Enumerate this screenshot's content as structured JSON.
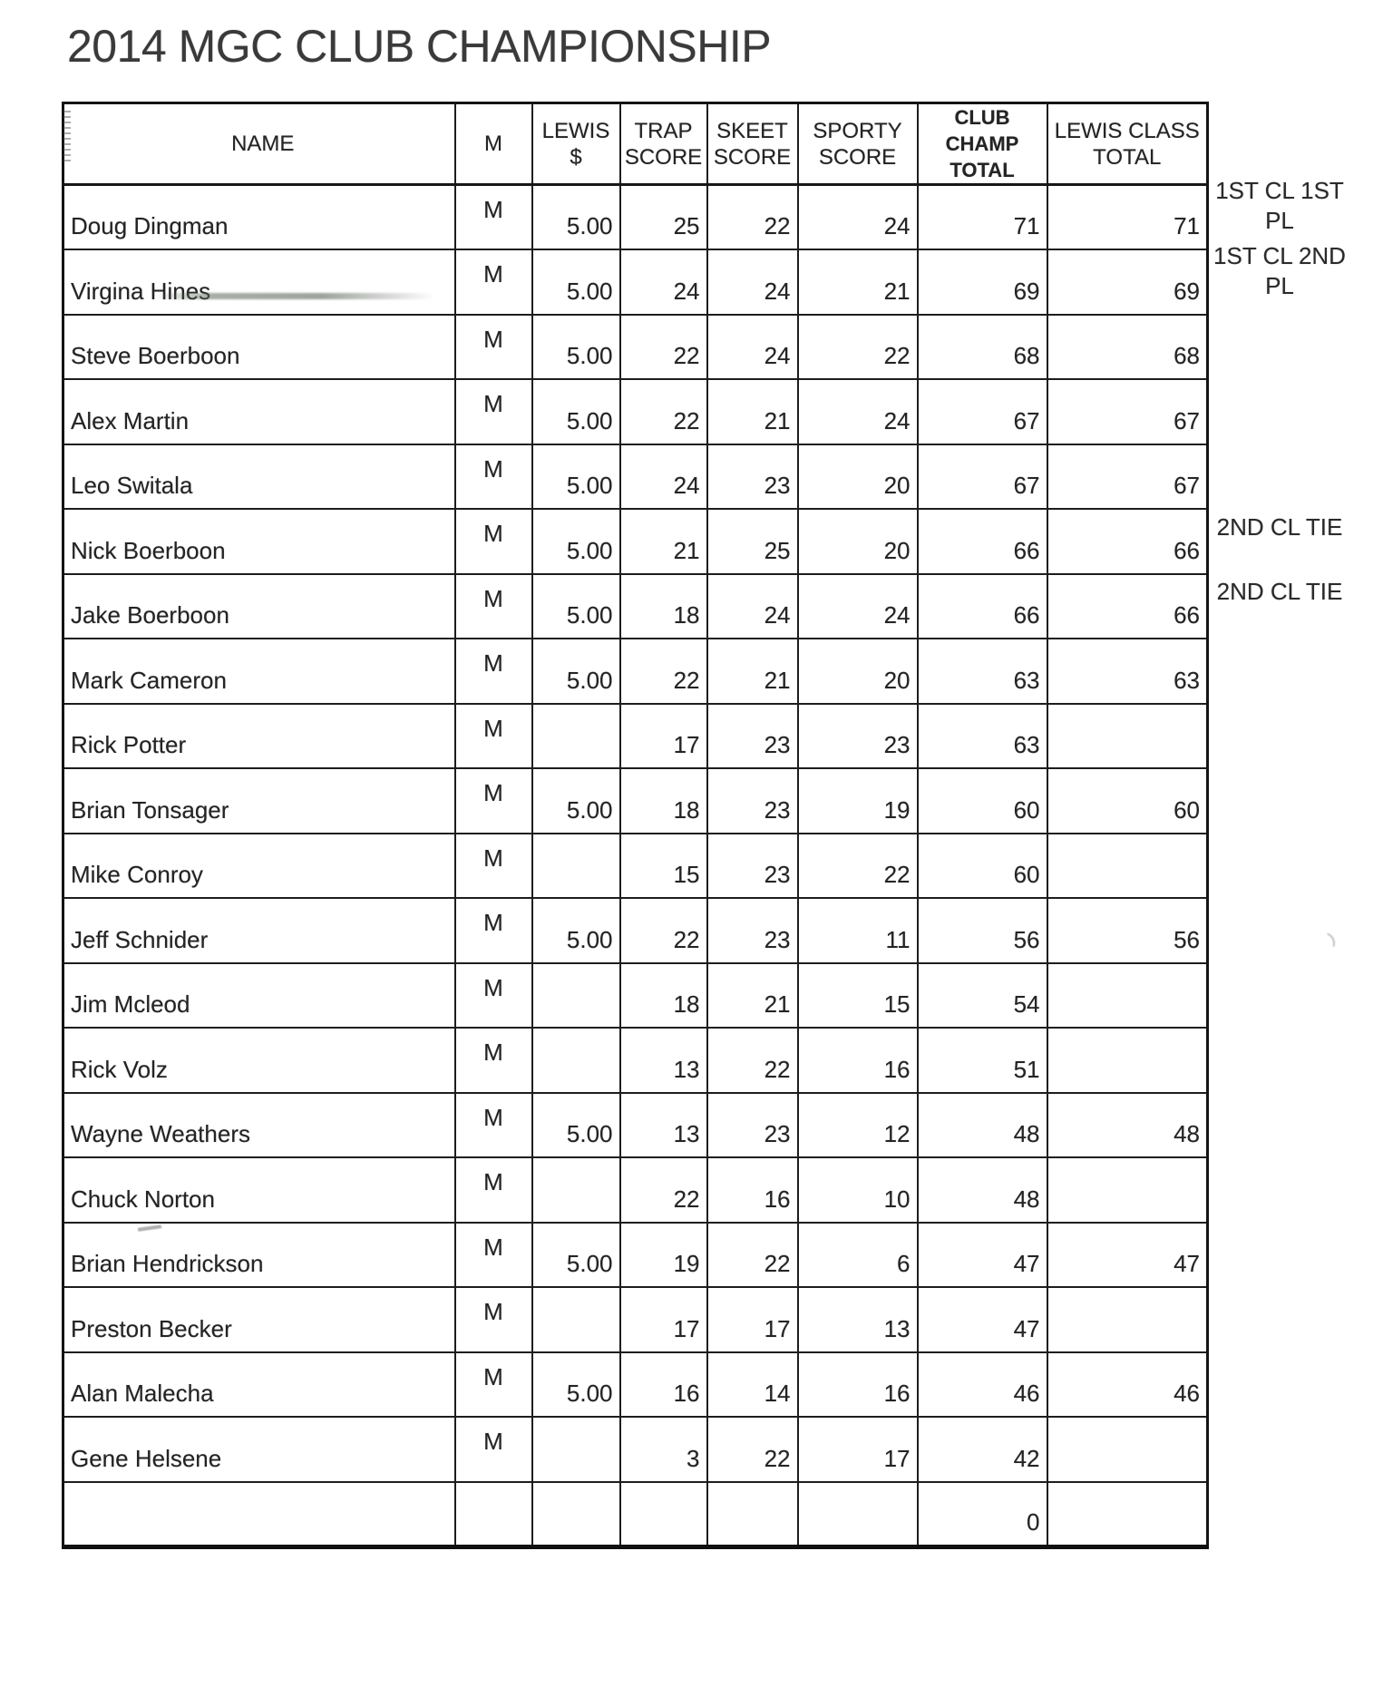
{
  "title": "2014 MGC CLUB CHAMPIONSHIP",
  "table": {
    "headers": [
      {
        "key": "name",
        "l1": "NAME"
      },
      {
        "key": "m",
        "l1": "M"
      },
      {
        "key": "lewis",
        "l1": "LEWIS",
        "l2": "$"
      },
      {
        "key": "trap",
        "l1": "TRAP",
        "l2": "SCORE"
      },
      {
        "key": "skeet",
        "l1": "SKEET",
        "l2": "SCORE"
      },
      {
        "key": "sporty",
        "l1": "SPORTY",
        "l2": "SCORE"
      },
      {
        "key": "club",
        "l1": "CLUB CHAMP",
        "l2": "TOTAL",
        "bold": true
      },
      {
        "key": "lewiscl",
        "l1": "LEWIS CLASS",
        "l2": "TOTAL"
      }
    ],
    "rows": [
      {
        "name": "Doug Dingman",
        "m": "M",
        "lewis": "5.00",
        "trap": "25",
        "skeet": "22",
        "sporty": "24",
        "club": "71",
        "lewiscl": "71"
      },
      {
        "name": "Virgina Hines",
        "m": "M",
        "lewis": "5.00",
        "trap": "24",
        "skeet": "24",
        "sporty": "21",
        "club": "69",
        "lewiscl": "69"
      },
      {
        "name": "Steve Boerboon",
        "m": "M",
        "lewis": "5.00",
        "trap": "22",
        "skeet": "24",
        "sporty": "22",
        "club": "68",
        "lewiscl": "68"
      },
      {
        "name": "Alex Martin",
        "m": "M",
        "lewis": "5.00",
        "trap": "22",
        "skeet": "21",
        "sporty": "24",
        "club": "67",
        "lewiscl": "67"
      },
      {
        "name": "Leo Switala",
        "m": "M",
        "lewis": "5.00",
        "trap": "24",
        "skeet": "23",
        "sporty": "20",
        "club": "67",
        "lewiscl": "67"
      },
      {
        "name": "Nick Boerboon",
        "m": "M",
        "lewis": "5.00",
        "trap": "21",
        "skeet": "25",
        "sporty": "20",
        "club": "66",
        "lewiscl": "66"
      },
      {
        "name": "Jake Boerboon",
        "m": "M",
        "lewis": "5.00",
        "trap": "18",
        "skeet": "24",
        "sporty": "24",
        "club": "66",
        "lewiscl": "66"
      },
      {
        "name": "Mark Cameron",
        "m": "M",
        "lewis": "5.00",
        "trap": "22",
        "skeet": "21",
        "sporty": "20",
        "club": "63",
        "lewiscl": "63"
      },
      {
        "name": "Rick Potter",
        "m": "M",
        "lewis": "",
        "trap": "17",
        "skeet": "23",
        "sporty": "23",
        "club": "63",
        "lewiscl": ""
      },
      {
        "name": "Brian Tonsager",
        "m": "M",
        "lewis": "5.00",
        "trap": "18",
        "skeet": "23",
        "sporty": "19",
        "club": "60",
        "lewiscl": "60"
      },
      {
        "name": "Mike Conroy",
        "m": "M",
        "lewis": "",
        "trap": "15",
        "skeet": "23",
        "sporty": "22",
        "club": "60",
        "lewiscl": ""
      },
      {
        "name": "Jeff Schnider",
        "m": "M",
        "lewis": "5.00",
        "trap": "22",
        "skeet": "23",
        "sporty": "11",
        "club": "56",
        "lewiscl": "56"
      },
      {
        "name": "Jim Mcleod",
        "m": "M",
        "lewis": "",
        "trap": "18",
        "skeet": "21",
        "sporty": "15",
        "club": "54",
        "lewiscl": ""
      },
      {
        "name": "Rick Volz",
        "m": "M",
        "lewis": "",
        "trap": "13",
        "skeet": "22",
        "sporty": "16",
        "club": "51",
        "lewiscl": ""
      },
      {
        "name": "Wayne Weathers",
        "m": "M",
        "lewis": "5.00",
        "trap": "13",
        "skeet": "23",
        "sporty": "12",
        "club": "48",
        "lewiscl": "48"
      },
      {
        "name": "Chuck Norton",
        "m": "M",
        "lewis": "",
        "trap": "22",
        "skeet": "16",
        "sporty": "10",
        "club": "48",
        "lewiscl": ""
      },
      {
        "name": "Brian Hendrickson",
        "m": "M",
        "lewis": "5.00",
        "trap": "19",
        "skeet": "22",
        "sporty": "6",
        "club": "47",
        "lewiscl": "47"
      },
      {
        "name": "Preston Becker",
        "m": "M",
        "lewis": "",
        "trap": "17",
        "skeet": "17",
        "sporty": "13",
        "club": "47",
        "lewiscl": ""
      },
      {
        "name": "Alan Malecha",
        "m": "M",
        "lewis": "5.00",
        "trap": "16",
        "skeet": "14",
        "sporty": "16",
        "club": "46",
        "lewiscl": "46"
      },
      {
        "name": "Gene Helsene",
        "m": "M",
        "lewis": "",
        "trap": "3",
        "skeet": "22",
        "sporty": "17",
        "club": "42",
        "lewiscl": ""
      },
      {
        "name": "",
        "m": "",
        "lewis": "",
        "trap": "",
        "skeet": "",
        "sporty": "",
        "club": "0",
        "lewiscl": ""
      }
    ]
  },
  "annotations": [
    {
      "row": 1,
      "lines": [
        "1ST CL 1ST",
        "PL"
      ]
    },
    {
      "row": 2,
      "lines": [
        "1ST CL 2ND",
        "PL"
      ]
    },
    {
      "row": 6,
      "lines": [
        "2ND CL TIE"
      ]
    },
    {
      "row": 7,
      "lines": [
        "2ND CL TIE"
      ]
    }
  ],
  "colors": {
    "ink": "#2a2a2a",
    "border": "#1b1b1b",
    "paper": "#ffffff"
  }
}
